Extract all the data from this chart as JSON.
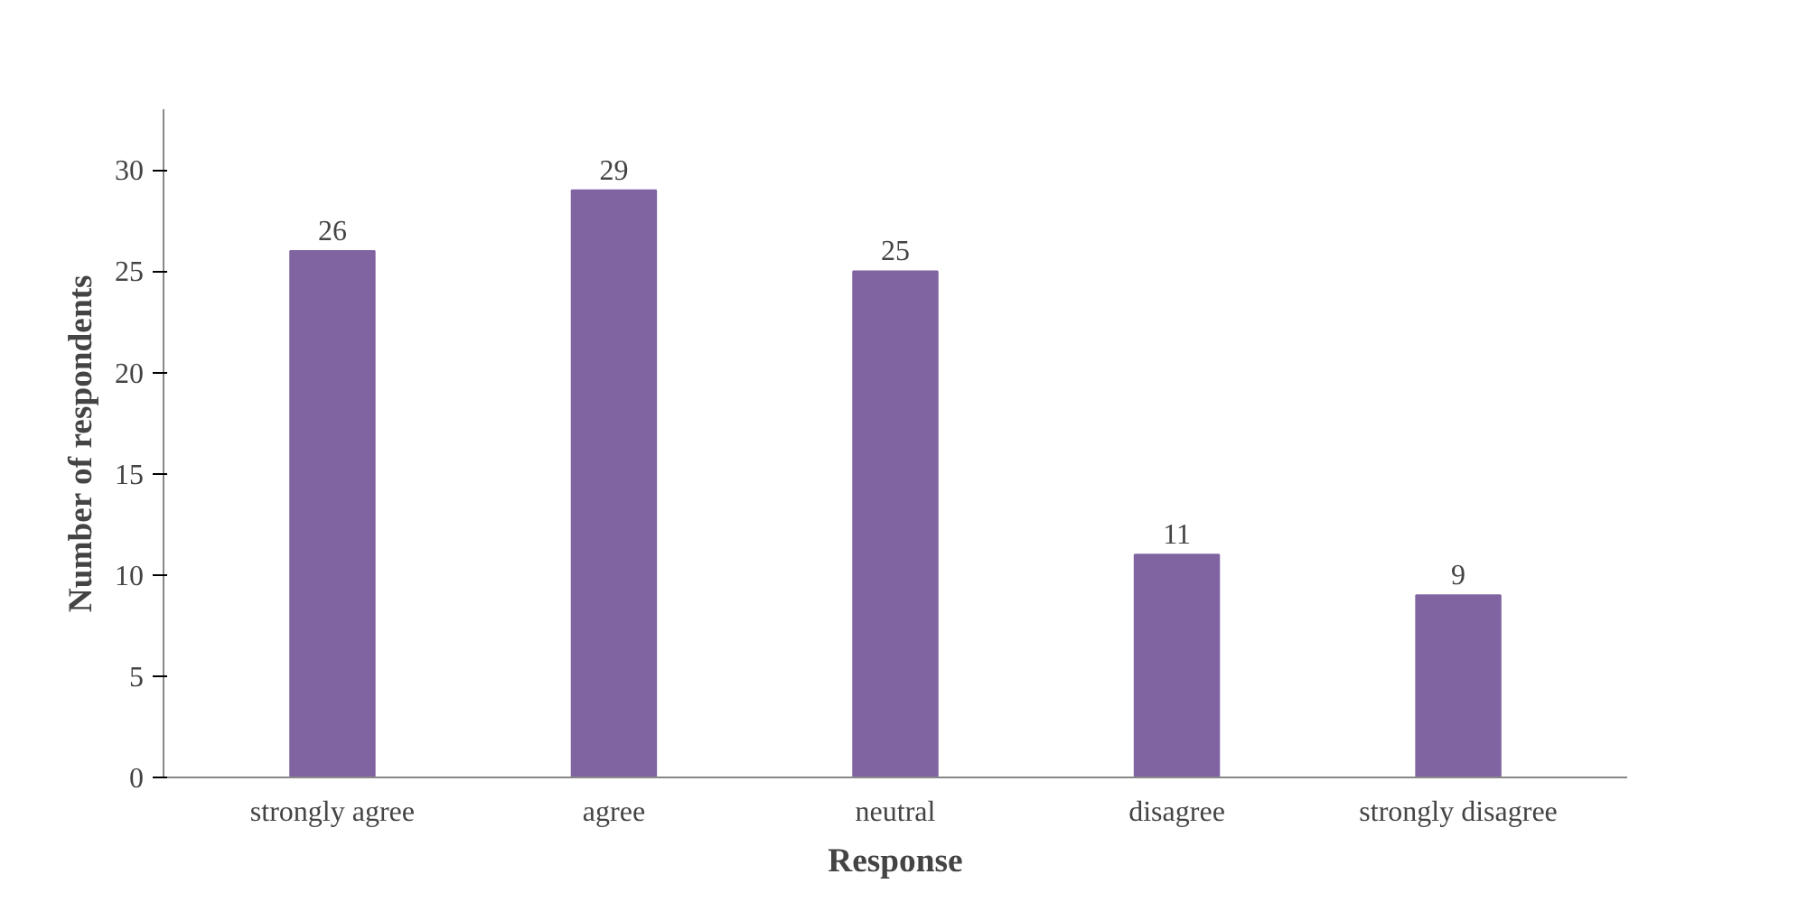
{
  "chart_data": {
    "type": "bar",
    "xlabel": "Response",
    "ylabel": "Number of respondents",
    "categories": [
      "strongly agree",
      "agree",
      "neutral",
      "disagree",
      "strongly disagree"
    ],
    "values": [
      26,
      29,
      25,
      11,
      9
    ],
    "color": "#8064a2",
    "ylim": [
      0,
      33
    ],
    "yticks": [
      0,
      5,
      10,
      15,
      20,
      25,
      30
    ],
    "grid": false,
    "data_labels": true
  }
}
